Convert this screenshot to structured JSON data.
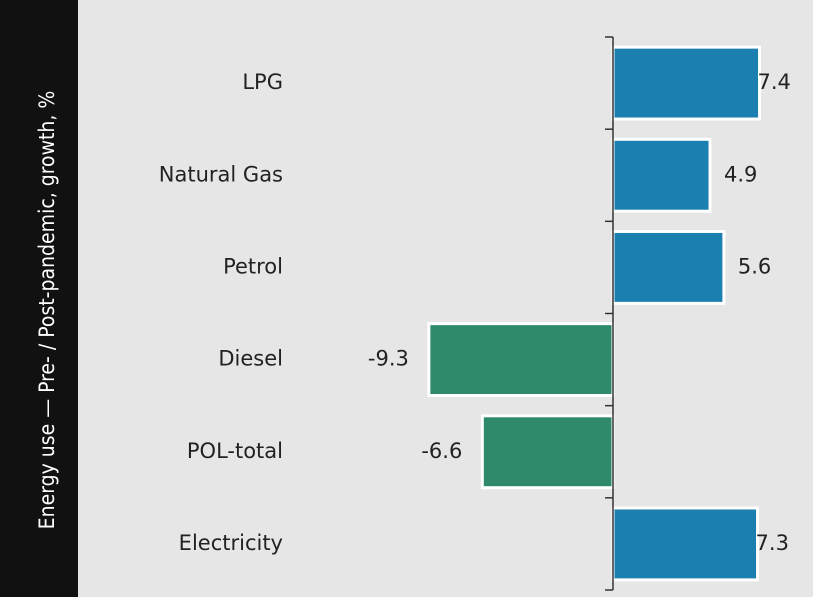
{
  "chart_data": {
    "type": "barh",
    "title": "Energy use — Pre- / Post-pandemic, growth, %",
    "categories": [
      "LPG",
      "Natural Gas",
      "Petrol",
      "Diesel",
      "POL-total",
      "Electricity"
    ],
    "values": [
      7.4,
      4.9,
      5.6,
      -9.3,
      -6.6,
      7.3
    ],
    "colors": [
      "#1b7fb0",
      "#1b7fb0",
      "#1b7fb0",
      "#2e8a6b",
      "#2e8a6b",
      "#1b7fb0"
    ],
    "xlim": [
      -10,
      10
    ]
  }
}
